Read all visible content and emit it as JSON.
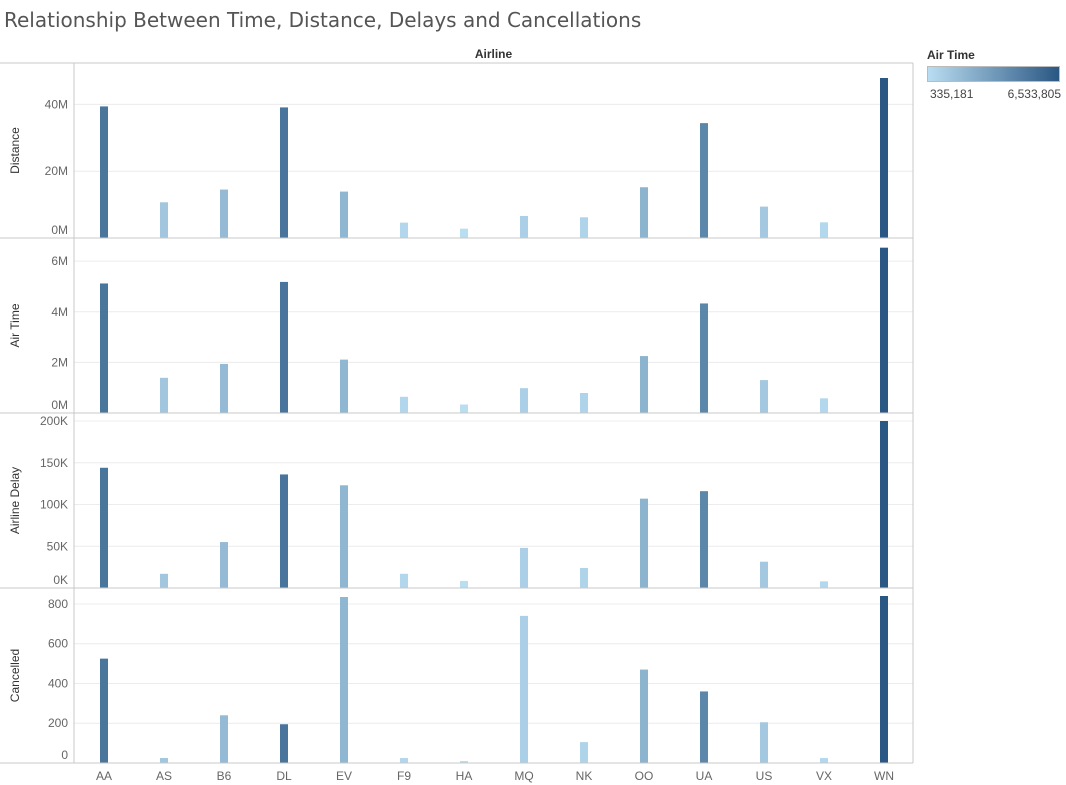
{
  "title": "Relationship Between Time, Distance, Delays and Cancellations",
  "legend": {
    "title": "Air Time",
    "min_label": "335,181",
    "max_label": "6,533,805",
    "color_min": "#b9ddf1",
    "color_max": "#2a5783",
    "min_value": 335181,
    "max_value": 6533805
  },
  "chart_data": {
    "type": "bar",
    "column_header": "Airline",
    "categories": [
      "AA",
      "AS",
      "B6",
      "DL",
      "EV",
      "F9",
      "HA",
      "MQ",
      "NK",
      "OO",
      "UA",
      "US",
      "VX",
      "WN"
    ],
    "color_by": "Air Time",
    "grid": true,
    "panels": [
      {
        "ylabel": "Distance",
        "ylim": [
          0,
          50000000
        ],
        "ticks": [
          0,
          20000000,
          40000000
        ],
        "tick_labels": [
          "0M",
          "20M",
          "40M"
        ],
        "values": [
          39400000,
          10700000,
          14500000,
          39100000,
          13900000,
          4600000,
          2800000,
          6600000,
          6200000,
          15200000,
          34400000,
          9400000,
          4700000,
          47900000
        ]
      },
      {
        "ylabel": "Air Time",
        "ylim": [
          0,
          6600000
        ],
        "ticks": [
          0,
          2000000,
          4000000,
          6000000
        ],
        "tick_labels": [
          "0M",
          "2M",
          "4M",
          "6M"
        ],
        "values": [
          5120000,
          1390000,
          1940000,
          5180000,
          2110000,
          640000,
          335181,
          980000,
          790000,
          2250000,
          4330000,
          1300000,
          580000,
          6533805
        ]
      },
      {
        "ylabel": "Airline Delay",
        "ylim": [
          0,
          200000
        ],
        "ticks": [
          0,
          50000,
          100000,
          150000,
          200000
        ],
        "tick_labels": [
          "0K",
          "50K",
          "100K",
          "150K",
          "200K"
        ],
        "values": [
          144000,
          17000,
          55000,
          136000,
          123000,
          17000,
          8500,
          48000,
          24000,
          107000,
          116000,
          31500,
          8000,
          200000
        ]
      },
      {
        "ylabel": "Cancelled",
        "ylim": [
          0,
          840
        ],
        "ticks": [
          0,
          200,
          400,
          600,
          800
        ],
        "tick_labels": [
          "0",
          "200",
          "400",
          "600",
          "800"
        ],
        "values": [
          525,
          25,
          240,
          195,
          835,
          25,
          10,
          740,
          105,
          470,
          360,
          205,
          25,
          840
        ]
      }
    ]
  }
}
